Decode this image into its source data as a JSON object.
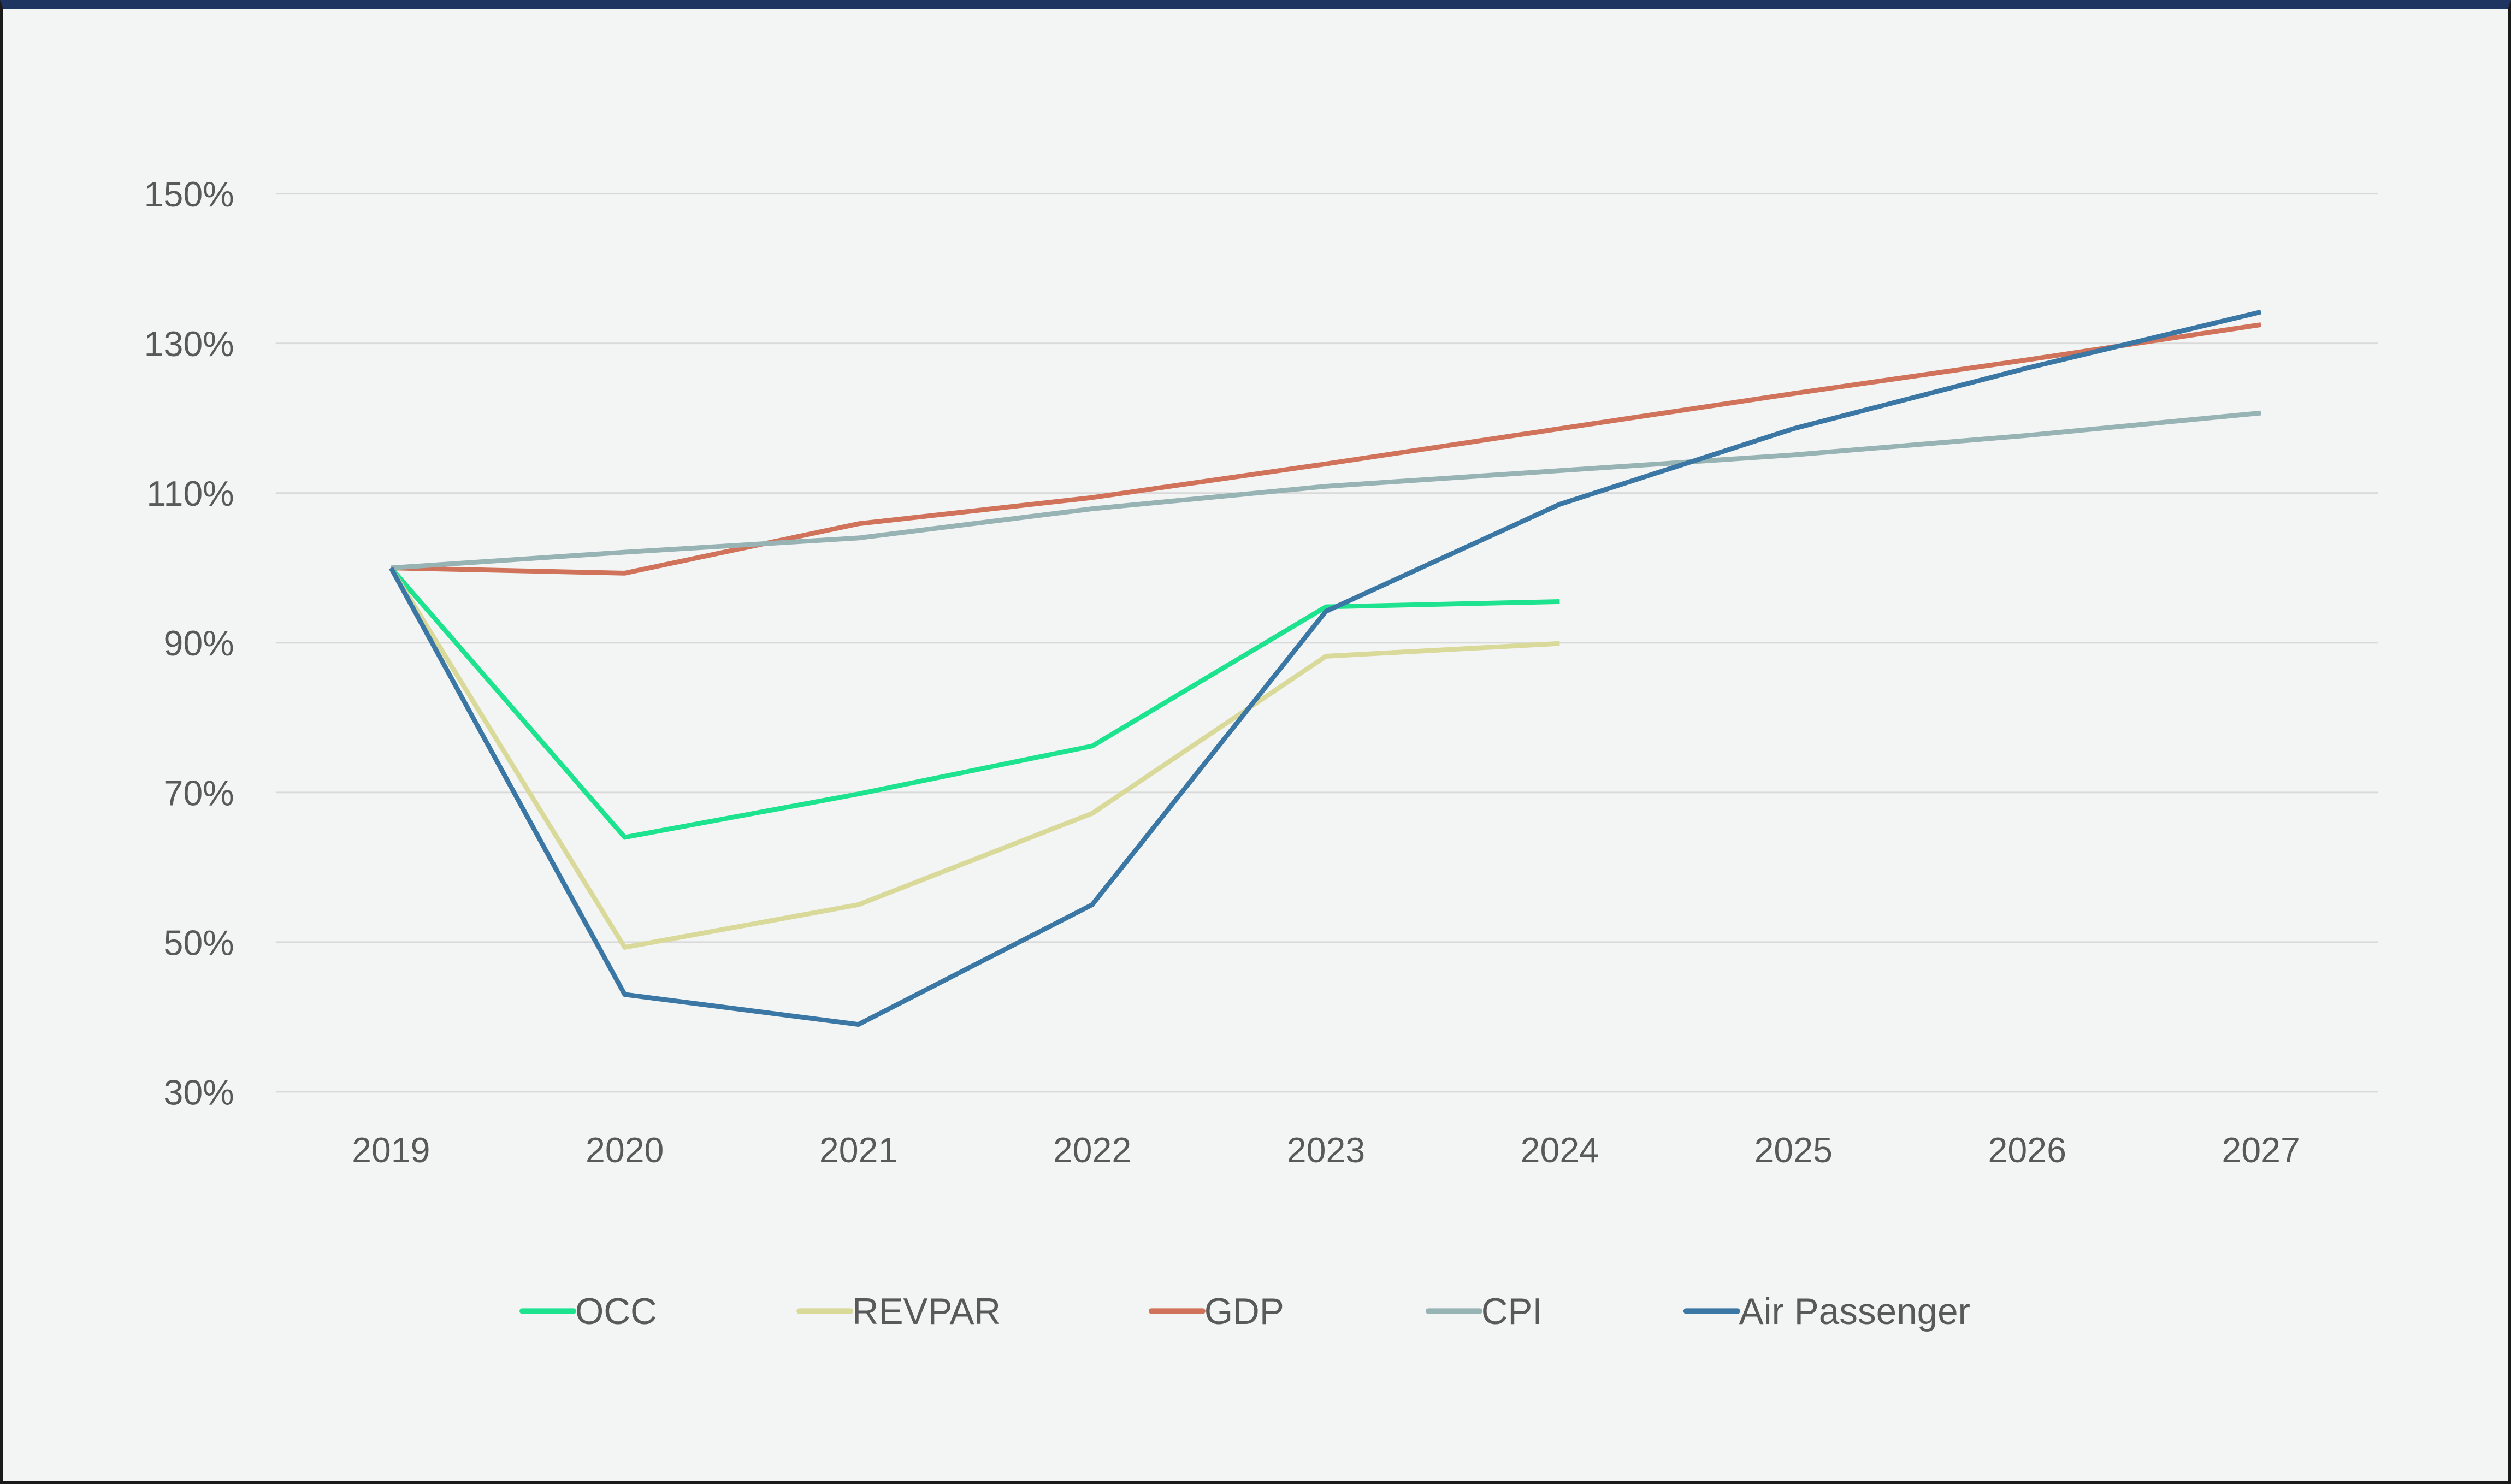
{
  "chart_data": {
    "type": "line",
    "title": "",
    "xlabel": "",
    "ylabel": "",
    "x": [
      "2019",
      "2020",
      "2021",
      "2022",
      "2023",
      "2024",
      "2025",
      "2026",
      "2027"
    ],
    "y_ticks": [
      "30%",
      "50%",
      "70%",
      "90%",
      "110%",
      "130%",
      "150%"
    ],
    "y_tick_values": [
      30,
      50,
      70,
      90,
      110,
      130,
      150
    ],
    "ylim": [
      30,
      150
    ],
    "grid": true,
    "legend_position": "bottom",
    "series": [
      {
        "name": "OCC",
        "color": "#1de38f",
        "values": [
          100,
          64,
          69.8,
          76.2,
          94.8,
          95.5,
          null,
          null,
          null
        ]
      },
      {
        "name": "REVPAR",
        "color": "#d9d99a",
        "values": [
          100,
          49.3,
          55,
          67.2,
          88.2,
          89.9,
          null,
          null,
          null
        ]
      },
      {
        "name": "GDP",
        "color": "#d0735a",
        "values": [
          100,
          99.3,
          105.9,
          109.4,
          113.9,
          118.6,
          123.3,
          127.8,
          132.5
        ]
      },
      {
        "name": "CPI",
        "color": "#97b3b4",
        "values": [
          100,
          102.1,
          104,
          107.9,
          110.9,
          113,
          115.1,
          117.7,
          120.7
        ]
      },
      {
        "name": "Air Passenger",
        "color": "#3a77a4",
        "values": [
          100,
          43,
          39,
          55,
          94.2,
          108.5,
          118.6,
          126.7,
          134.2
        ]
      }
    ]
  }
}
